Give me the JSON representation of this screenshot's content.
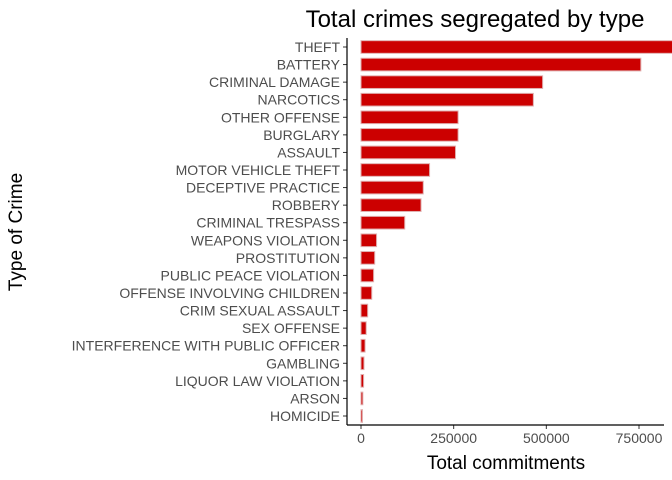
{
  "chart_data": {
    "type": "bar",
    "orientation": "horizontal",
    "title": "Total crimes segregated by type",
    "xlabel": "Total commitments",
    "ylabel": "Type of Crime",
    "xlim": [
      0,
      900000
    ],
    "xticks": [
      0,
      250000,
      500000,
      750000
    ],
    "xtick_labels": [
      "0",
      "250000",
      "500000",
      "750000"
    ],
    "bar_color": "#cc0000",
    "bar_outline": "#e0b0b0",
    "grid": false,
    "categories": [
      "THEFT",
      "BATTERY",
      "CRIMINAL DAMAGE",
      "NARCOTICS",
      "OTHER OFFENSE",
      "BURGLARY",
      "ASSAULT",
      "MOTOR VEHICLE THEFT",
      "DECEPTIVE PRACTICE",
      "ROBBERY",
      "CRIMINAL TRESPASS",
      "WEAPONS VIOLATION",
      "PROSTITUTION",
      "PUBLIC PEACE VIOLATION",
      "OFFENSE INVOLVING CHILDREN",
      "CRIM SEXUAL ASSAULT",
      "SEX OFFENSE",
      "INTERFERENCE WITH PUBLIC OFFICER",
      "GAMBLING",
      "LIQUOR LAW VIOLATION",
      "ARSON",
      "HOMICIDE"
    ],
    "values": [
      890000,
      755000,
      490000,
      465000,
      262000,
      262000,
      255000,
      185000,
      168000,
      162000,
      118000,
      42000,
      37000,
      34000,
      29000,
      18000,
      14000,
      11000,
      8000,
      7000,
      5000,
      3000
    ]
  }
}
